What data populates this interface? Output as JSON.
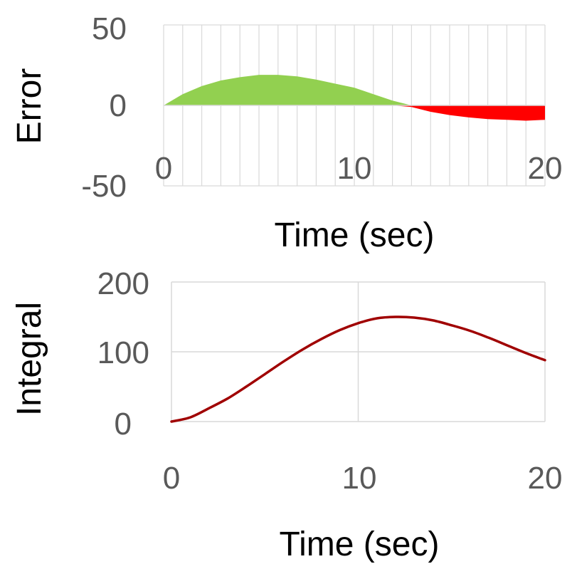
{
  "chart_data": [
    {
      "type": "area",
      "xlabel": "Time (sec)",
      "ylabel": "Error",
      "xlim": [
        0,
        20
      ],
      "ylim": [
        -50,
        50
      ],
      "x_ticks": [
        "0",
        "10",
        "20"
      ],
      "y_ticks": [
        "50",
        "0",
        "-50"
      ],
      "grid": "vertical",
      "colors": {
        "positive": "#92d050",
        "negative": "#ff0000",
        "grid": "#d9d9d9",
        "tick_label": "#595959"
      },
      "x": [
        0,
        1,
        2,
        3,
        4,
        5,
        6,
        7,
        8,
        9,
        10,
        11,
        12,
        13,
        14,
        15,
        16,
        17,
        18,
        19,
        20
      ],
      "values": [
        0,
        7,
        12,
        15.5,
        17.5,
        19,
        19,
        18,
        16,
        13.5,
        11,
        7,
        3,
        -1,
        -4,
        -6,
        -7.5,
        -8.5,
        -9,
        -9.5,
        -9
      ]
    },
    {
      "type": "line",
      "xlabel": "Time (sec)",
      "ylabel": "Integral",
      "xlim": [
        0,
        20
      ],
      "ylim": [
        0,
        200
      ],
      "x_ticks": [
        "0",
        "10",
        "20"
      ],
      "y_ticks": [
        "200",
        "100",
        "0"
      ],
      "grid": "both",
      "colors": {
        "line": "#a00000",
        "grid": "#d9d9d9",
        "tick_label": "#595959"
      },
      "x": [
        0,
        1,
        2,
        3,
        4,
        5,
        6,
        7,
        8,
        9,
        10,
        11,
        12,
        13,
        14,
        15,
        16,
        17,
        18,
        19,
        20
      ],
      "values": [
        0,
        6,
        19,
        33,
        50,
        68,
        86,
        103,
        118,
        131,
        141,
        148,
        150,
        149,
        145,
        138,
        130,
        120,
        109,
        98,
        88
      ]
    }
  ]
}
